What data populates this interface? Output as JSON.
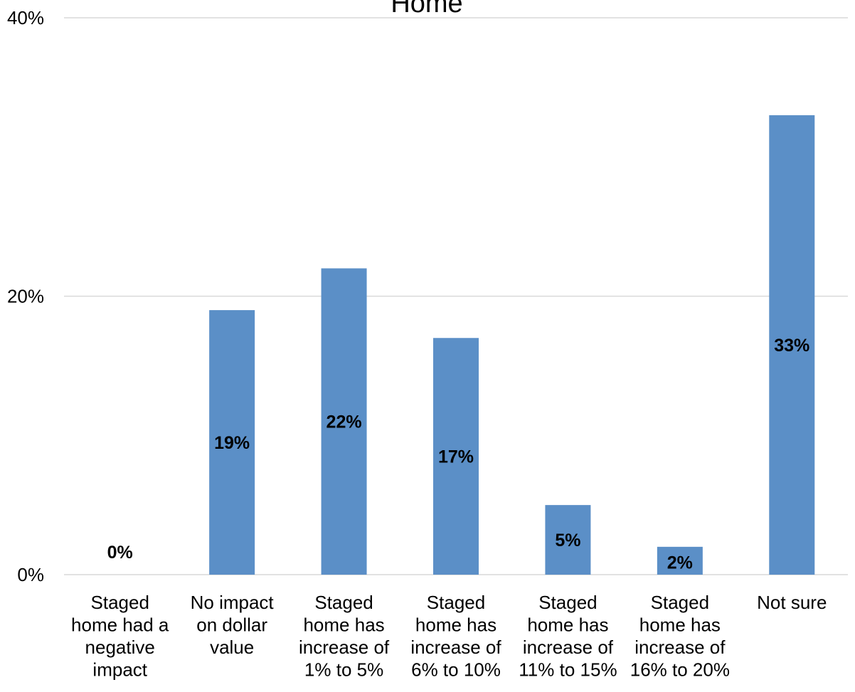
{
  "chart_data": {
    "type": "bar",
    "title": "Home",
    "categories": [
      [
        "Staged",
        "home had a",
        "negative",
        "impact"
      ],
      [
        "No impact",
        "on dollar",
        "value"
      ],
      [
        "Staged",
        "home has",
        "increase of",
        "1% to 5%"
      ],
      [
        "Staged",
        "home has",
        "increase of",
        "6% to 10%"
      ],
      [
        "Staged",
        "home has",
        "increase of",
        "11% to 15%"
      ],
      [
        "Staged",
        "home has",
        "increase of",
        "16% to 20%"
      ],
      [
        "Not sure"
      ]
    ],
    "values": [
      0,
      19,
      22,
      17,
      5,
      2,
      33
    ],
    "data_labels": [
      "0%",
      "19%",
      "22%",
      "17%",
      "5%",
      "2%",
      "33%"
    ],
    "y_ticks": [
      0,
      20,
      40
    ],
    "y_tick_labels": [
      "0%",
      "20%",
      "40%"
    ],
    "ylim": [
      0,
      40
    ],
    "grid": true,
    "legend": "none",
    "bar_color": "#5b8fc7",
    "gridline_color": "#d9d9d9"
  }
}
